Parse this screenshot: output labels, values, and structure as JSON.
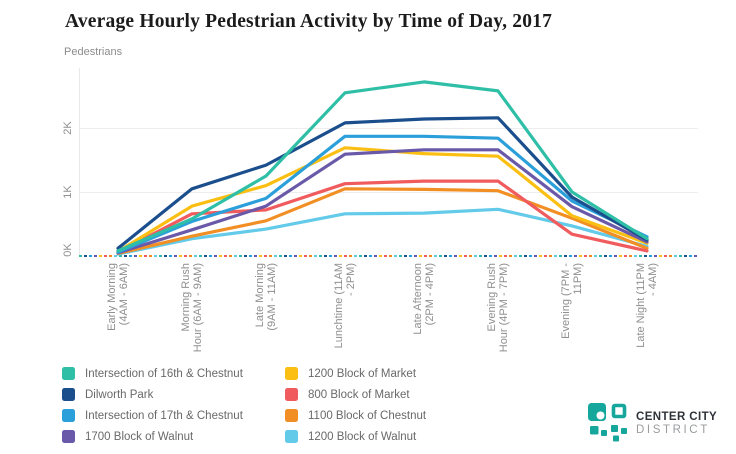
{
  "title": "Average Hourly Pedestrian Activity by Time of Day, 2017",
  "axis_title": "Pedestrians",
  "chart_data": {
    "type": "line",
    "title": "Average Hourly Pedestrian Activity by Time of Day, 2017",
    "ylabel": "Pedestrians",
    "xlabel": "",
    "ylim": [
      0,
      2900
    ],
    "y_ticks": [
      {
        "value": 0,
        "label": "0K"
      },
      {
        "value": 1000,
        "label": "1K"
      },
      {
        "value": 2000,
        "label": "2K"
      }
    ],
    "grid": "horizontal-light",
    "legend_position": "bottom-left-two-columns",
    "categories": [
      {
        "label": "Early Morning (4AM - 6AM)",
        "lines": [
          "Early Morning",
          "(4AM - 6AM)"
        ]
      },
      {
        "label": "Morning Rush Hour (6AM - 9AM)",
        "lines": [
          "Morning Rush",
          "Hour (6AM - 9AM)"
        ]
      },
      {
        "label": "Late Morning (9AM - 11AM)",
        "lines": [
          "Late Morning",
          "(9AM - 11AM)"
        ]
      },
      {
        "label": "Lunchtime (11AM - 2PM)",
        "lines": [
          "Lunchtime (11AM",
          "- 2PM)"
        ]
      },
      {
        "label": "Late Afternoon (2PM - 4PM)",
        "lines": [
          "Late Afternoon",
          "(2PM - 4PM)"
        ]
      },
      {
        "label": "Evening Rush Hour (4PM - 7PM)",
        "lines": [
          "Evening Rush",
          "Hour (4PM - 7PM)"
        ]
      },
      {
        "label": "Evening (7PM - 11PM)",
        "lines": [
          "Evening (7PM -",
          "11PM)"
        ]
      },
      {
        "label": "Late Night (11PM - 4AM)",
        "lines": [
          "Late Night (11PM",
          "- 4AM)"
        ]
      }
    ],
    "series": [
      {
        "name": "Intersection of 16th & Chestnut",
        "color": "#2FBFA7",
        "values": [
          80,
          580,
          1250,
          2550,
          2720,
          2580,
          1000,
          270
        ]
      },
      {
        "name": "Dilworth Park",
        "color": "#1B4E8D",
        "values": [
          120,
          1050,
          1420,
          2080,
          2140,
          2160,
          920,
          250
        ]
      },
      {
        "name": "Intersection of 17th & Chestnut",
        "color": "#2B9FD9",
        "values": [
          60,
          540,
          900,
          1870,
          1870,
          1840,
          860,
          300
        ]
      },
      {
        "name": "1700 Block of Walnut",
        "color": "#6A59A8",
        "values": [
          50,
          410,
          780,
          1590,
          1660,
          1660,
          770,
          220
        ]
      },
      {
        "name": "1200 Block of Market",
        "color": "#FBBF14",
        "values": [
          70,
          780,
          1100,
          1690,
          1600,
          1560,
          630,
          200
        ]
      },
      {
        "name": "800 Block of Market",
        "color": "#F05C5E",
        "values": [
          60,
          660,
          720,
          1130,
          1170,
          1170,
          340,
          80
        ]
      },
      {
        "name": "1100 Block of Chestnut",
        "color": "#F28F24",
        "values": [
          40,
          310,
          550,
          1050,
          1040,
          1020,
          590,
          120
        ]
      },
      {
        "name": "1200 Block of Walnut",
        "color": "#63CBE9",
        "values": [
          30,
          270,
          420,
          660,
          670,
          730,
          470,
          150
        ]
      }
    ]
  },
  "legend": {
    "column1_series_indexes": [
      0,
      1,
      2,
      3
    ],
    "column2_series_indexes": [
      4,
      5,
      6,
      7
    ]
  },
  "logo": {
    "line1": "CENTER CITY",
    "line2": "DISTRICT",
    "accent_color": "#16A79C"
  }
}
